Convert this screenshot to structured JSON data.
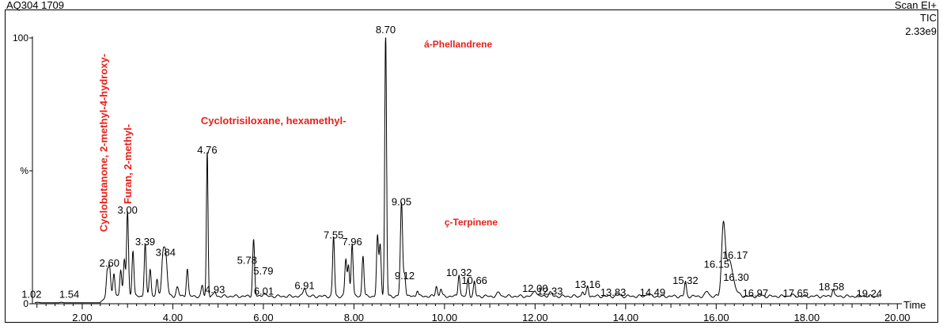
{
  "header": {
    "sample_id": "AQ304 1709",
    "scan_mode": "Scan  EI+",
    "trace": "TIC",
    "intensity": "2.33e9"
  },
  "chart_data": {
    "type": "line",
    "title": "",
    "xlabel": "Time",
    "ylabel": "%",
    "xlim": [
      0.9,
      20.1
    ],
    "ylim": [
      0,
      100
    ],
    "x_ticks": [
      2.0,
      4.0,
      6.0,
      8.0,
      10.0,
      12.0,
      14.0,
      16.0,
      18.0,
      20.0
    ],
    "x_tick_labels": [
      "2.00",
      "4.00",
      "6.00",
      "8.00",
      "10.00",
      "12.00",
      "14.00",
      "16.00",
      "18.00",
      "20.00"
    ],
    "y_tick_labels": [
      {
        "value": 100,
        "label": "100"
      },
      {
        "value": 50,
        "label": "%"
      },
      {
        "value": 0,
        "label": "0"
      }
    ],
    "line_color": "#000000",
    "annotation_color": "#e8201a",
    "baseline": 0.6,
    "peaks": [
      {
        "x": 1.02,
        "y": 0.8,
        "w": 0.04,
        "label": "1.02"
      },
      {
        "x": 1.54,
        "y": 0.8,
        "w": 0.04,
        "label": "1.54"
      },
      {
        "x": 2.6,
        "y": 12.5,
        "w": 0.035,
        "label": "2.60"
      },
      {
        "x": 3.0,
        "y": 32.5,
        "w": 0.03,
        "label": "3.00"
      },
      {
        "x": 3.39,
        "y": 20.5,
        "w": 0.03,
        "label": "3.39"
      },
      {
        "x": 3.84,
        "y": 16.5,
        "w": 0.05,
        "label": "3.84"
      },
      {
        "x": 4.76,
        "y": 55.0,
        "w": 0.025,
        "label": "4.76"
      },
      {
        "x": 4.93,
        "y": 2.5,
        "w": 0.03,
        "label": "4.93"
      },
      {
        "x": 5.78,
        "y": 13.5,
        "w": 0.03,
        "label": "5.78"
      },
      {
        "x": 5.79,
        "y": 9.5,
        "w": 0.03,
        "label": "5.79"
      },
      {
        "x": 6.01,
        "y": 2.0,
        "w": 0.04,
        "label": "6.01"
      },
      {
        "x": 6.91,
        "y": 4.0,
        "w": 0.04,
        "label": "6.91"
      },
      {
        "x": 7.55,
        "y": 23.0,
        "w": 0.03,
        "label": "7.55"
      },
      {
        "x": 7.96,
        "y": 20.5,
        "w": 0.03,
        "label": "7.96"
      },
      {
        "x": 8.7,
        "y": 100.0,
        "w": 0.028,
        "label": "8.70"
      },
      {
        "x": 9.05,
        "y": 35.5,
        "w": 0.035,
        "label": "9.05"
      },
      {
        "x": 9.12,
        "y": 9.0,
        "w": 0.03,
        "label": "9.12"
      },
      {
        "x": 10.32,
        "y": 9.0,
        "w": 0.03,
        "label": "10.32"
      },
      {
        "x": 10.66,
        "y": 6.0,
        "w": 0.03,
        "label": "10.66"
      },
      {
        "x": 12.0,
        "y": 3.0,
        "w": 0.05,
        "label": "12.00"
      },
      {
        "x": 12.33,
        "y": 2.0,
        "w": 0.05,
        "label": "12.33"
      },
      {
        "x": 13.16,
        "y": 4.5,
        "w": 0.03,
        "label": "13.16"
      },
      {
        "x": 13.83,
        "y": 1.5,
        "w": 0.05,
        "label": "13.83"
      },
      {
        "x": 14.49,
        "y": 1.5,
        "w": 0.05,
        "label": "14.49"
      },
      {
        "x": 15.32,
        "y": 6.0,
        "w": 0.03,
        "label": "15.32"
      },
      {
        "x": 16.15,
        "y": 12.0,
        "w": 0.05,
        "label": "16.15"
      },
      {
        "x": 16.17,
        "y": 15.5,
        "w": 0.06,
        "label": "16.17"
      },
      {
        "x": 16.3,
        "y": 8.0,
        "w": 0.08,
        "label": "16.30"
      },
      {
        "x": 16.97,
        "y": 1.2,
        "w": 0.05,
        "label": "16.97"
      },
      {
        "x": 17.65,
        "y": 1.2,
        "w": 0.05,
        "label": "17.65"
      },
      {
        "x": 18.58,
        "y": 3.5,
        "w": 0.03,
        "label": "18.58"
      },
      {
        "x": 19.24,
        "y": 1.0,
        "w": 0.05,
        "label": "19.24"
      }
    ],
    "minor_peaks": [
      {
        "x": 2.55,
        "y": 9.0,
        "w": 0.03
      },
      {
        "x": 2.7,
        "y": 9.0,
        "w": 0.03
      },
      {
        "x": 2.85,
        "y": 11.0,
        "w": 0.03
      },
      {
        "x": 2.93,
        "y": 14.0,
        "w": 0.03
      },
      {
        "x": 3.12,
        "y": 18.0,
        "w": 0.03
      },
      {
        "x": 3.5,
        "y": 11.0,
        "w": 0.03
      },
      {
        "x": 3.65,
        "y": 7.0,
        "w": 0.03
      },
      {
        "x": 3.78,
        "y": 14.0,
        "w": 0.04
      },
      {
        "x": 4.1,
        "y": 4.0,
        "w": 0.04
      },
      {
        "x": 4.32,
        "y": 11.0,
        "w": 0.03
      },
      {
        "x": 4.65,
        "y": 4.5,
        "w": 0.03
      },
      {
        "x": 7.82,
        "y": 14.5,
        "w": 0.03
      },
      {
        "x": 7.88,
        "y": 12.0,
        "w": 0.03
      },
      {
        "x": 8.2,
        "y": 16.0,
        "w": 0.03
      },
      {
        "x": 8.52,
        "y": 23.0,
        "w": 0.03
      },
      {
        "x": 8.58,
        "y": 20.0,
        "w": 0.03
      },
      {
        "x": 9.4,
        "y": 3.0,
        "w": 0.03
      },
      {
        "x": 9.82,
        "y": 4.5,
        "w": 0.03
      },
      {
        "x": 9.92,
        "y": 3.5,
        "w": 0.03
      },
      {
        "x": 10.52,
        "y": 7.0,
        "w": 0.03
      },
      {
        "x": 11.2,
        "y": 2.0,
        "w": 0.05
      },
      {
        "x": 13.05,
        "y": 2.5,
        "w": 0.03
      },
      {
        "x": 15.8,
        "y": 2.5,
        "w": 0.05
      }
    ],
    "annotations": [
      {
        "text": "Cyclobutanone, 2-methyl-4-hydroxy-",
        "x": 2.55,
        "y": 27.0,
        "orientation": "vertical"
      },
      {
        "text": "Furan, 2-methyl-",
        "x": 3.08,
        "y": 37.5,
        "orientation": "vertical"
      },
      {
        "text": "Cyclotrisiloxane, hexamethyl-",
        "x": 4.62,
        "y": 67.5,
        "orientation": "horizontal"
      },
      {
        "text": "á-Phellandrene",
        "x": 9.55,
        "y": 96.5,
        "orientation": "horizontal"
      },
      {
        "text": "ç-Terpinene",
        "x": 10.0,
        "y": 29.5,
        "orientation": "horizontal"
      }
    ]
  }
}
